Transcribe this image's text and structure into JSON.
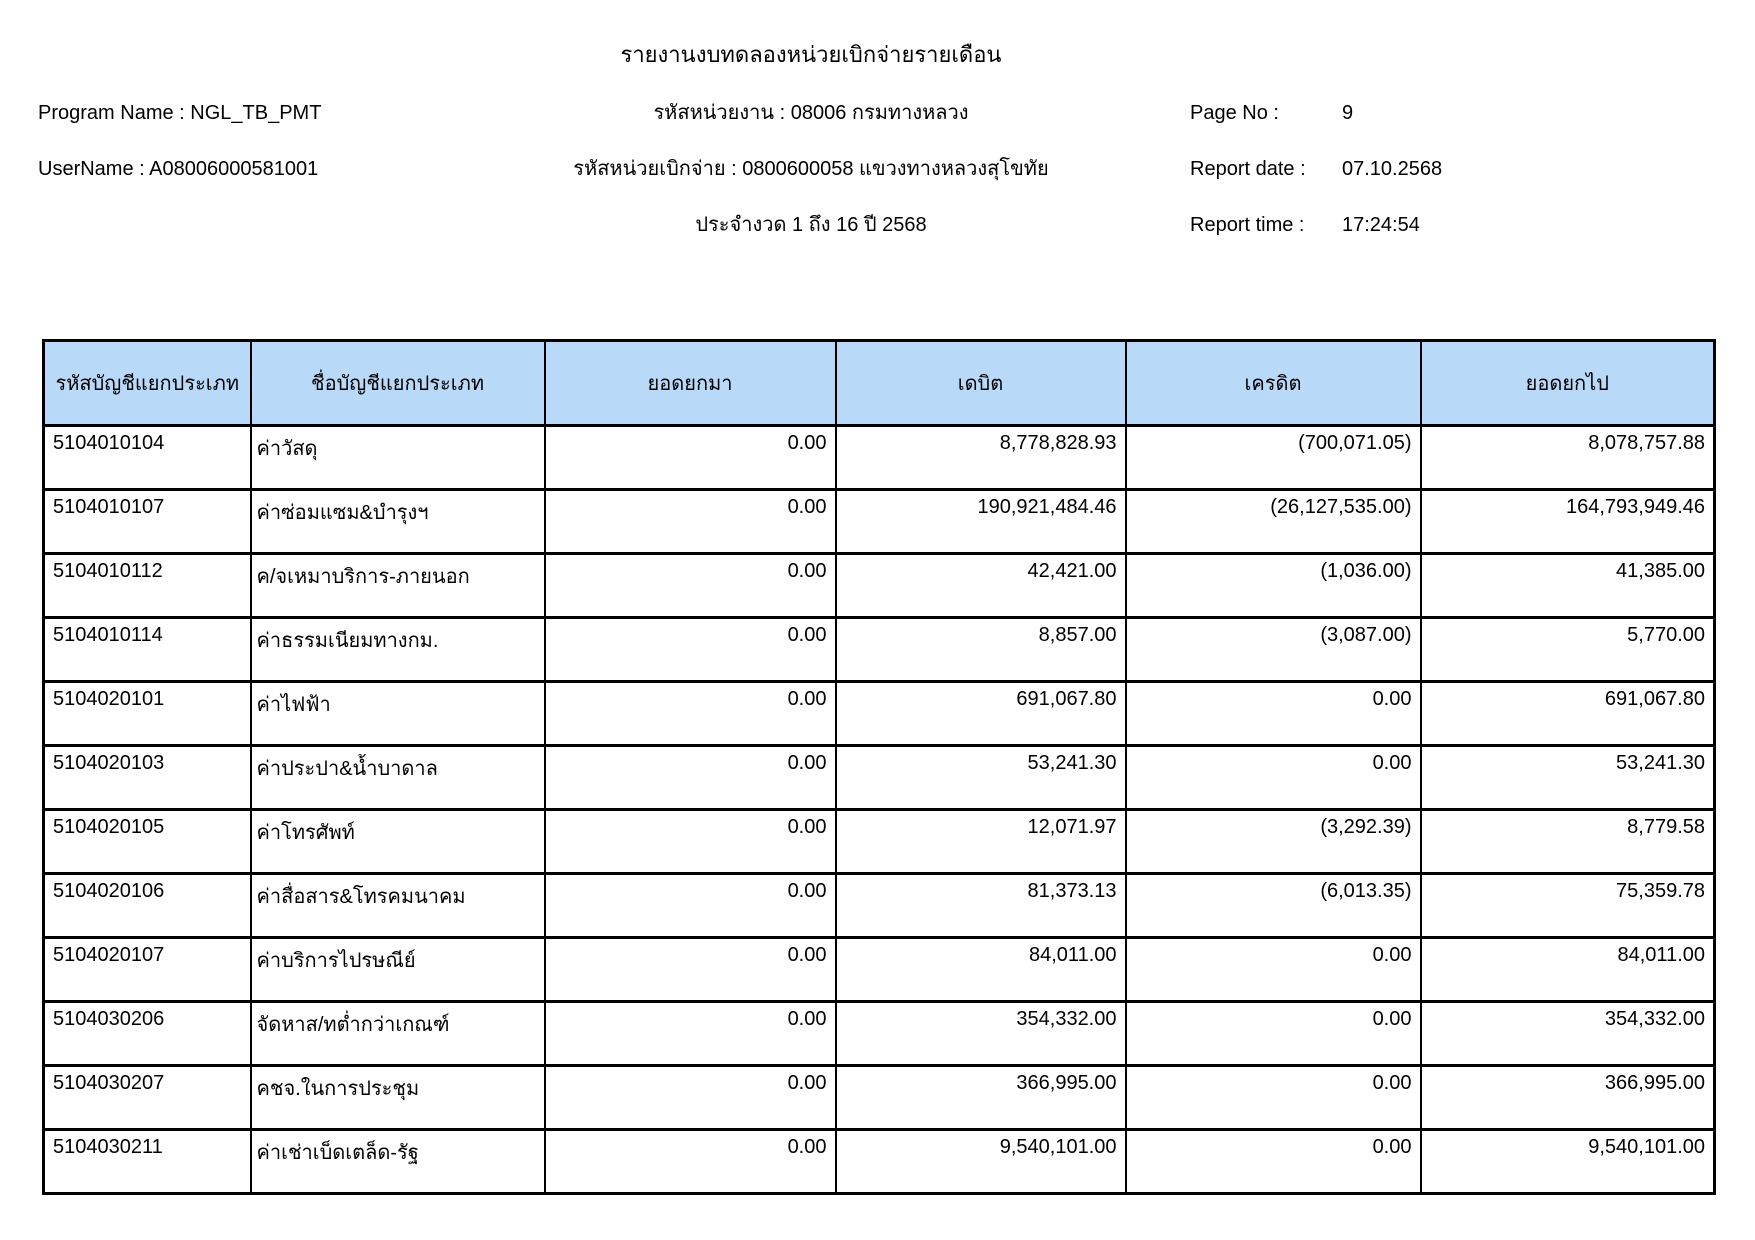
{
  "report": {
    "title": "รายงานงบทดลองหน่วยเบิกจ่ายรายเดือน",
    "left": {
      "program_line": "Program Name : NGL_TB_PMT",
      "user_line": "UserName : A08006000581001"
    },
    "center": {
      "agency_line": "รหัสหน่วยงาน : 08006 กรมทางหลวง",
      "unit_line": "รหัสหน่วยเบิกจ่าย : 0800600058 แขวงทางหลวงสุโขทัย",
      "period_line": "ประจำงวด 1 ถึง 16 ปี 2568"
    },
    "right": [
      {
        "label": "Page No :",
        "value": "9"
      },
      {
        "label": "Report date :",
        "value": "07.10.2568"
      },
      {
        "label": "Report time :",
        "value": "17:24:54"
      }
    ]
  },
  "table": {
    "columns": [
      "รหัสบัญชีแยกประเภท",
      "ชื่อบัญชีแยกประเภท",
      "ยอดยกมา",
      "เดบิต",
      "เครดิต",
      "ยอดยกไป"
    ],
    "rows": [
      [
        "5104010104",
        "ค่าวัสดุ",
        "0.00",
        "8,778,828.93",
        "(700,071.05)",
        "8,078,757.88"
      ],
      [
        "5104010107",
        "ค่าซ่อมแซม&บำรุงฯ",
        "0.00",
        "190,921,484.46",
        "(26,127,535.00)",
        "164,793,949.46"
      ],
      [
        "5104010112",
        "ค/จเหมาบริการ-ภายนอก",
        "0.00",
        "42,421.00",
        "(1,036.00)",
        "41,385.00"
      ],
      [
        "5104010114",
        "ค่าธรรมเนียมทางกม.",
        "0.00",
        "8,857.00",
        "(3,087.00)",
        "5,770.00"
      ],
      [
        "5104020101",
        "ค่าไฟฟ้า",
        "0.00",
        "691,067.80",
        "0.00",
        "691,067.80"
      ],
      [
        "5104020103",
        "ค่าประปา&น้ำบาดาล",
        "0.00",
        "53,241.30",
        "0.00",
        "53,241.30"
      ],
      [
        "5104020105",
        "ค่าโทรศัพท์",
        "0.00",
        "12,071.97",
        "(3,292.39)",
        "8,779.58"
      ],
      [
        "5104020106",
        "ค่าสื่อสาร&โทรคมนาคม",
        "0.00",
        "81,373.13",
        "(6,013.35)",
        "75,359.78"
      ],
      [
        "5104020107",
        "ค่าบริการไปรษณีย์",
        "0.00",
        "84,011.00",
        "0.00",
        "84,011.00"
      ],
      [
        "5104030206",
        "จัดหาส/ทต่ำกว่าเกณฑ์",
        "0.00",
        "354,332.00",
        "0.00",
        "354,332.00"
      ],
      [
        "5104030207",
        "คชจ.ในการประชุม",
        "0.00",
        "366,995.00",
        "0.00",
        "366,995.00"
      ],
      [
        "5104030211",
        "ค่าเช่าเบ็ดเตล็ด-รัฐ",
        "0.00",
        "9,540,101.00",
        "0.00",
        "9,540,101.00"
      ]
    ]
  },
  "colors": {
    "table_header_bg": "#b9d9f8",
    "border": "#000000",
    "text": "#000000"
  }
}
